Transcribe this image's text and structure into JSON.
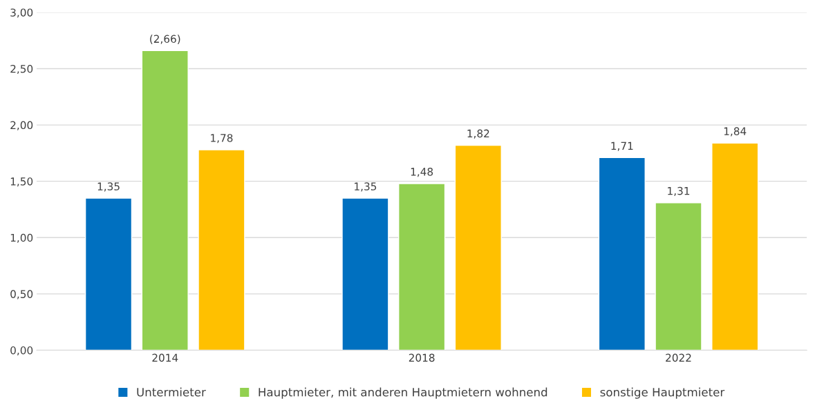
{
  "chart_data": {
    "type": "bar",
    "categories": [
      "2014",
      "2018",
      "2022"
    ],
    "series": [
      {
        "name": "Untermieter",
        "color": "#0070c0",
        "values": [
          1.35,
          1.35,
          1.71
        ],
        "value_labels": [
          "1,35",
          "1,35",
          "1,71"
        ]
      },
      {
        "name": "Hauptmieter, mit anderen Hauptmietern wohnend",
        "color": "#92d050",
        "values": [
          2.66,
          1.48,
          1.31
        ],
        "value_labels": [
          "(2,66)",
          "1,48",
          "1,31"
        ]
      },
      {
        "name": "sonstige Hauptmieter",
        "color": "#ffc000",
        "values": [
          1.78,
          1.82,
          1.84
        ],
        "value_labels": [
          "1,78",
          "1,82",
          "1,84"
        ]
      }
    ],
    "ylim": [
      0,
      3
    ],
    "yticks": [
      {
        "value": 0,
        "label": "0,00"
      },
      {
        "value": 0.5,
        "label": "0,50"
      },
      {
        "value": 1,
        "label": "1,00"
      },
      {
        "value": 1.5,
        "label": "1,50"
      },
      {
        "value": 2,
        "label": "2,00"
      },
      {
        "value": 2.5,
        "label": "2,50"
      },
      {
        "value": 3,
        "label": "3,00"
      }
    ],
    "grid": "y",
    "legend": "bottom"
  }
}
